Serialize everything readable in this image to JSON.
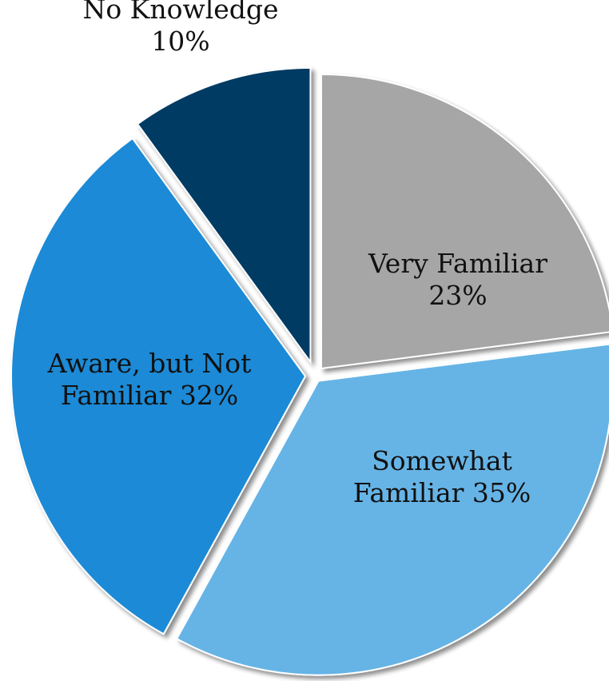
{
  "chart_data": {
    "type": "pie",
    "title": "",
    "slices": [
      {
        "label": "Very Familiar",
        "value": 23,
        "display": "23%",
        "color": "#a6a6a6"
      },
      {
        "label": "Somewhat Familiar",
        "value": 35,
        "display": "35%",
        "color": "#66b4e6"
      },
      {
        "label": "Aware, but Not Familiar",
        "value": 32,
        "display": "32%",
        "color": "#1f8ad6"
      },
      {
        "label": "No Knowledge",
        "value": 10,
        "display": "10%",
        "color": "#003a63"
      }
    ],
    "start_angle": "12 o'clock",
    "direction": "clockwise",
    "exploded": true,
    "legend": "none",
    "data_labels": [
      {
        "lines": [
          "Very Familiar",
          "23%"
        ]
      },
      {
        "lines": [
          "Somewhat",
          "Familiar 35%"
        ]
      },
      {
        "lines": [
          "Aware, but Not",
          "Familiar 32%"
        ]
      },
      {
        "lines": [
          "No Knowledge",
          "10%"
        ]
      }
    ]
  }
}
